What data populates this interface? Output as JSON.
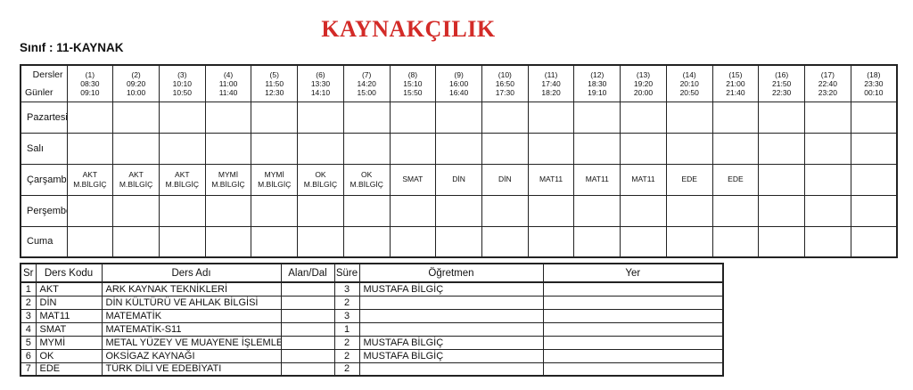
{
  "page": {
    "title": "KAYNAKÇILIK",
    "title_color": "#d32b28",
    "class_label": "Sınıf : 11-KAYNAK"
  },
  "timetable": {
    "corner": {
      "top_label": "Dersler",
      "bottom_label": "Günler"
    },
    "periods": [
      {
        "no": "(1)",
        "start": "08:30",
        "end": "09:10"
      },
      {
        "no": "(2)",
        "start": "09:20",
        "end": "10:00"
      },
      {
        "no": "(3)",
        "start": "10:10",
        "end": "10:50"
      },
      {
        "no": "(4)",
        "start": "11:00",
        "end": "11:40"
      },
      {
        "no": "(5)",
        "start": "11:50",
        "end": "12:30"
      },
      {
        "no": "(6)",
        "start": "13:30",
        "end": "14:10"
      },
      {
        "no": "(7)",
        "start": "14:20",
        "end": "15:00"
      },
      {
        "no": "(8)",
        "start": "15:10",
        "end": "15:50"
      },
      {
        "no": "(9)",
        "start": "16:00",
        "end": "16:40"
      },
      {
        "no": "(10)",
        "start": "16:50",
        "end": "17:30"
      },
      {
        "no": "(11)",
        "start": "17:40",
        "end": "18:20"
      },
      {
        "no": "(12)",
        "start": "18:30",
        "end": "19:10"
      },
      {
        "no": "(13)",
        "start": "19:20",
        "end": "20:00"
      },
      {
        "no": "(14)",
        "start": "20:10",
        "end": "20:50"
      },
      {
        "no": "(15)",
        "start": "21:00",
        "end": "21:40"
      },
      {
        "no": "(16)",
        "start": "21:50",
        "end": "22:30"
      },
      {
        "no": "(17)",
        "start": "22:40",
        "end": "23:20"
      },
      {
        "no": "(18)",
        "start": "23:30",
        "end": "00:10"
      }
    ],
    "days": [
      {
        "label": "Pazartesi",
        "cells": []
      },
      {
        "label": "Salı",
        "cells": []
      },
      {
        "label": "Çarşamba",
        "cells": [
          {
            "code": "AKT",
            "teacher": "M.BİLGİÇ"
          },
          {
            "code": "AKT",
            "teacher": "M.BİLGİÇ"
          },
          {
            "code": "AKT",
            "teacher": "M.BİLGİÇ"
          },
          {
            "code": "MYMİ",
            "teacher": "M.BİLGİÇ"
          },
          {
            "code": "MYMİ",
            "teacher": "M.BİLGİÇ"
          },
          {
            "code": "OK",
            "teacher": "M.BİLGİÇ"
          },
          {
            "code": "OK",
            "teacher": "M.BİLGİÇ"
          },
          {
            "code": "SMAT",
            "teacher": ""
          },
          {
            "code": "DİN",
            "teacher": ""
          },
          {
            "code": "DİN",
            "teacher": ""
          },
          {
            "code": "MAT11",
            "teacher": ""
          },
          {
            "code": "MAT11",
            "teacher": ""
          },
          {
            "code": "MAT11",
            "teacher": ""
          },
          {
            "code": "EDE",
            "teacher": ""
          },
          {
            "code": "EDE",
            "teacher": ""
          },
          {
            "code": "",
            "teacher": ""
          },
          {
            "code": "",
            "teacher": ""
          },
          {
            "code": "",
            "teacher": ""
          }
        ]
      },
      {
        "label": "Perşembe",
        "cells": []
      },
      {
        "label": "Cuma",
        "cells": []
      }
    ]
  },
  "lessons": {
    "headers": [
      "Sr",
      "Ders Kodu",
      "Ders Adı",
      "Alan/Dal",
      "Süre",
      "Öğretmen",
      "Yer"
    ],
    "rows": [
      {
        "sr": "1",
        "code": "AKT",
        "name": "ARK KAYNAK TEKNİKLERİ",
        "alan": "",
        "sure": "3",
        "teacher": "MUSTAFA BİLGİÇ",
        "yer": ""
      },
      {
        "sr": "2",
        "code": "DİN",
        "name": "DİN KÜLTÜRÜ VE AHLAK BİLGİSİ",
        "alan": "",
        "sure": "2",
        "teacher": "",
        "yer": ""
      },
      {
        "sr": "3",
        "code": "MAT11",
        "name": "MATEMATİK",
        "alan": "",
        "sure": "3",
        "teacher": "",
        "yer": ""
      },
      {
        "sr": "4",
        "code": "SMAT",
        "name": "MATEMATİK-S11",
        "alan": "",
        "sure": "1",
        "teacher": "",
        "yer": ""
      },
      {
        "sr": "5",
        "code": "MYMİ",
        "name": "METAL YÜZEY VE MUAYENE İŞLEMLERİ",
        "alan": "",
        "sure": "2",
        "teacher": "MUSTAFA BİLGİÇ",
        "yer": ""
      },
      {
        "sr": "6",
        "code": "OK",
        "name": "OKSİGAZ KAYNAĞI",
        "alan": "",
        "sure": "2",
        "teacher": "MUSTAFA BİLGİÇ",
        "yer": ""
      },
      {
        "sr": "7",
        "code": "EDE",
        "name": "TÜRK DİLİ VE EDEBİYATI",
        "alan": "",
        "sure": "2",
        "teacher": "",
        "yer": ""
      }
    ]
  }
}
